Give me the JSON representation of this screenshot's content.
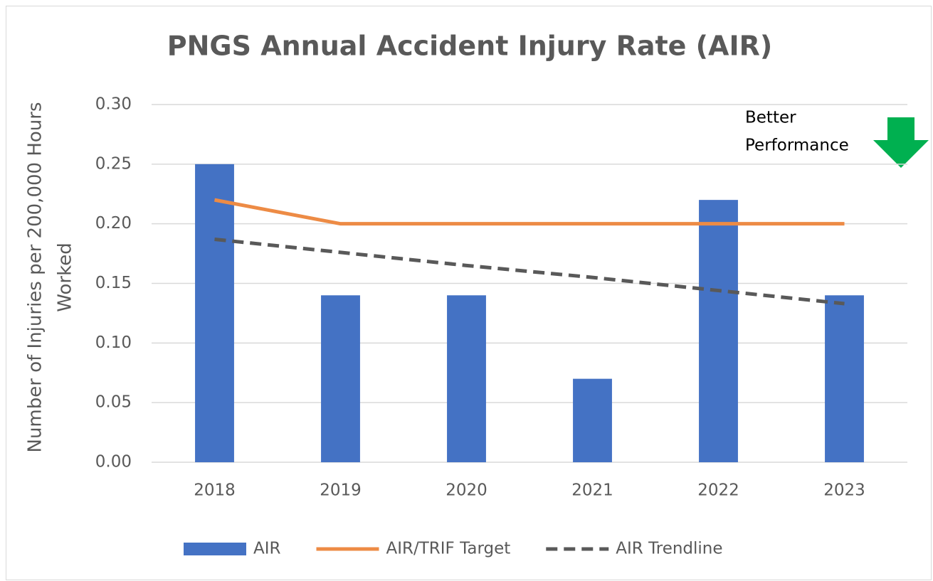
{
  "chart_data": {
    "type": "bar",
    "title": "PNGS Annual Accident Injury Rate (AIR)",
    "ylabel": [
      "Number of Injuries per 200,000 Hours",
      "Worked"
    ],
    "annotation": [
      "Better",
      "Performance"
    ],
    "categories": [
      "2018",
      "2019",
      "2020",
      "2021",
      "2022",
      "2023"
    ],
    "series": [
      {
        "name": "AIR",
        "type": "bar",
        "color": "#4472c4",
        "values": [
          0.25,
          0.14,
          0.14,
          0.07,
          0.22,
          0.14
        ]
      },
      {
        "name": "AIR/TRIF Target",
        "type": "line",
        "color": "#ed8b45",
        "values": [
          0.22,
          0.2,
          0.2,
          0.2,
          0.2,
          0.2
        ]
      },
      {
        "name": "AIR Trendline",
        "type": "line",
        "dashed": true,
        "color": "#595959",
        "values": [
          0.187,
          0.176,
          0.165,
          0.155,
          0.144,
          0.133
        ]
      }
    ],
    "ylim": [
      0,
      0.3
    ],
    "yticks": [
      {
        "value": 0,
        "label": "0.00"
      },
      {
        "value": 0.05,
        "label": "0.05"
      },
      {
        "value": 0.1,
        "label": "0.10"
      },
      {
        "value": 0.15,
        "label": "0.15"
      },
      {
        "value": 0.2,
        "label": "0.20"
      },
      {
        "value": 0.25,
        "label": "0.25"
      },
      {
        "value": 0.3,
        "label": "0.30"
      }
    ],
    "grid": true,
    "legend": "bottom"
  }
}
